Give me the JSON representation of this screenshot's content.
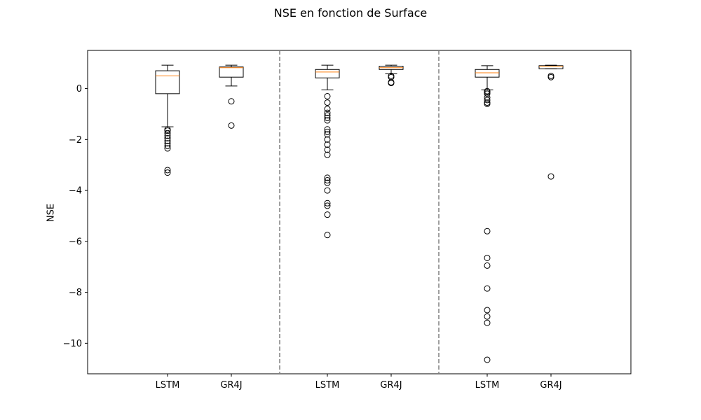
{
  "chart_data": {
    "type": "box",
    "title": "NSE en fonction de Surface",
    "xlabel": "",
    "ylabel": "NSE",
    "ylim": [
      -11.2,
      1.5
    ],
    "yticks": [
      0,
      -2,
      -4,
      -6,
      -8,
      -10
    ],
    "grid": false,
    "group_separators": "dashed gray vertical lines between the three groups",
    "categories": [
      "LSTM",
      "GR4J",
      "LSTM",
      "GR4J",
      "LSTM",
      "GR4J"
    ],
    "boxes": [
      {
        "label": "LSTM",
        "whisker_low": -1.5,
        "q1": -0.2,
        "median": 0.5,
        "q3": 0.7,
        "whisker_high": 0.92,
        "outliers": [
          -1.6,
          -1.65,
          -1.75,
          -1.85,
          -1.95,
          -2.05,
          -2.15,
          -2.25,
          -2.35,
          -3.2,
          -3.3
        ]
      },
      {
        "label": "GR4J",
        "whisker_low": 0.1,
        "q1": 0.45,
        "median": 0.82,
        "q3": 0.85,
        "whisker_high": 0.92,
        "outliers": [
          -0.5,
          -1.45
        ]
      },
      {
        "label": "LSTM",
        "whisker_low": -0.05,
        "q1": 0.42,
        "median": 0.65,
        "q3": 0.75,
        "whisker_high": 0.92,
        "outliers": [
          -0.3,
          -0.55,
          -0.8,
          -0.95,
          -1.05,
          -1.15,
          -1.25,
          -1.6,
          -1.7,
          -1.8,
          -2.0,
          -2.2,
          -2.4,
          -2.6,
          -3.5,
          -3.6,
          -3.7,
          -4.0,
          -4.5,
          -4.6,
          -4.95,
          -5.75
        ]
      },
      {
        "label": "GR4J",
        "whisker_low": 0.58,
        "q1": 0.75,
        "median": 0.82,
        "q3": 0.88,
        "whisker_high": 0.92,
        "outliers": [
          0.5,
          0.45,
          0.25,
          0.22
        ]
      },
      {
        "label": "LSTM",
        "whisker_low": -0.05,
        "q1": 0.45,
        "median": 0.62,
        "q3": 0.75,
        "whisker_high": 0.9,
        "outliers": [
          -0.1,
          -0.15,
          -0.2,
          -0.35,
          -0.45,
          -0.55,
          -0.6,
          -5.6,
          -6.65,
          -6.95,
          -7.85,
          -8.7,
          -8.95,
          -9.2,
          -10.65
        ]
      },
      {
        "label": "GR4J",
        "whisker_low": 0.78,
        "q1": 0.78,
        "median": 0.88,
        "q3": 0.9,
        "whisker_high": 0.92,
        "outliers": [
          0.5,
          0.45,
          -3.45
        ]
      }
    ]
  }
}
